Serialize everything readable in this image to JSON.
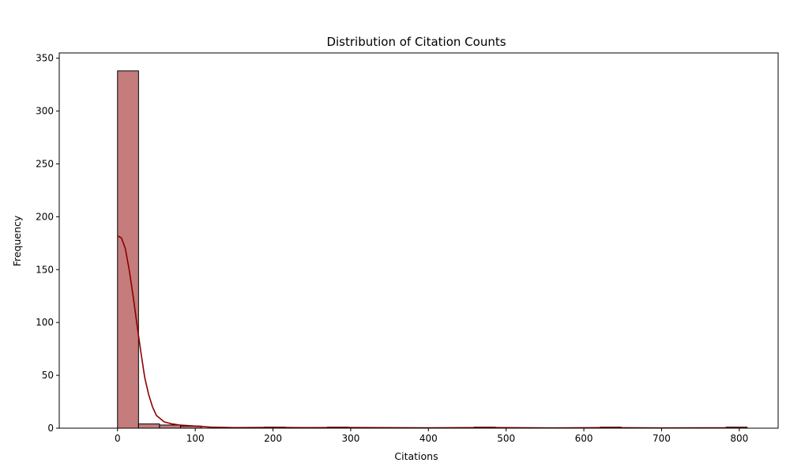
{
  "chart_data": {
    "type": "bar",
    "title": "Distribution of Citation Counts",
    "xlabel": "Citations",
    "ylabel": "Frequency",
    "xlim": [
      -75,
      850
    ],
    "ylim": [
      0,
      355
    ],
    "xticks": [
      0,
      100,
      200,
      300,
      400,
      500,
      600,
      700,
      800
    ],
    "yticks": [
      0,
      50,
      100,
      150,
      200,
      250,
      300,
      350
    ],
    "bin_width": 27,
    "bins": [
      {
        "start": 0,
        "count": 338
      },
      {
        "start": 27,
        "count": 4
      },
      {
        "start": 54,
        "count": 3
      },
      {
        "start": 81,
        "count": 2
      },
      {
        "start": 189,
        "count": 1
      },
      {
        "start": 270,
        "count": 1
      },
      {
        "start": 459,
        "count": 1
      },
      {
        "start": 621,
        "count": 1
      },
      {
        "start": 783,
        "count": 1
      }
    ],
    "kde": {
      "x": [
        0,
        5,
        10,
        15,
        20,
        25,
        30,
        35,
        40,
        45,
        50,
        60,
        70,
        80,
        100,
        120,
        150,
        200,
        250,
        300,
        400,
        480,
        560,
        630,
        700,
        800,
        810
      ],
      "y": [
        182,
        180,
        170,
        150,
        125,
        98,
        72,
        48,
        32,
        20,
        12,
        6,
        4,
        3,
        2,
        1,
        0.5,
        0.7,
        0.5,
        0.6,
        0.3,
        0.6,
        0.2,
        0.5,
        0.2,
        0.4,
        0.3
      ]
    },
    "colors": {
      "bar_fill": "#c47c7c",
      "bar_edge": "#000000",
      "kde_line": "#8b0000"
    }
  }
}
